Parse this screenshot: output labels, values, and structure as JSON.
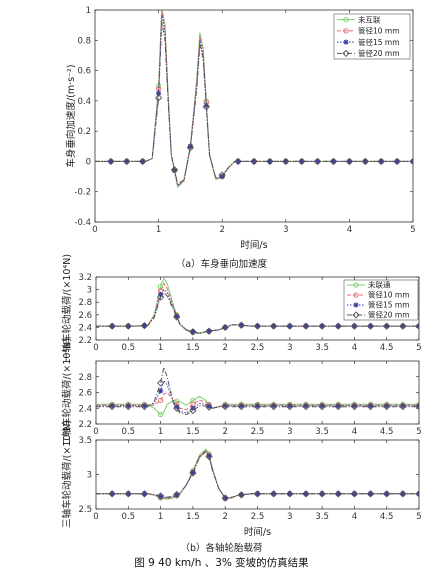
{
  "chart_data": [
    {
      "type": "line",
      "title": "",
      "xlabel": "时间/s",
      "ylabel": "车身垂向加速度/(m·s⁻²)",
      "xlim": [
        0,
        5
      ],
      "ylim": [
        -0.4,
        1.0
      ],
      "xticks": [
        0,
        1,
        2,
        3,
        4,
        5
      ],
      "yticks": [
        -0.4,
        -0.2,
        0,
        0.2,
        0.4,
        0.6,
        0.8,
        1
      ],
      "legend_position": "top-right",
      "x": [
        0,
        0.2,
        0.4,
        0.6,
        0.8,
        0.9,
        1.0,
        1.05,
        1.1,
        1.15,
        1.2,
        1.3,
        1.4,
        1.5,
        1.6,
        1.65,
        1.7,
        1.75,
        1.8,
        1.9,
        2.0,
        2.1,
        2.2,
        2.4,
        2.6,
        2.8,
        3.0,
        3.5,
        4.0,
        4.5,
        5.0
      ],
      "series": [
        {
          "name": "未互联",
          "color": "#7fcf6f",
          "marker": "circle",
          "values": [
            0,
            0,
            0,
            0,
            0,
            0.02,
            0.5,
            1.02,
            0.9,
            0.45,
            0.05,
            -0.17,
            -0.13,
            0.1,
            0.55,
            0.85,
            0.75,
            0.4,
            0.05,
            -0.12,
            -0.1,
            -0.04,
            0,
            0,
            0,
            0,
            0,
            0,
            0,
            0,
            0
          ]
        },
        {
          "name": "管径10 mm",
          "color": "#e56a6a",
          "marker": "circle",
          "values": [
            0,
            0,
            0,
            0,
            0,
            0.02,
            0.48,
            1.0,
            0.88,
            0.44,
            0.05,
            -0.16,
            -0.13,
            0.1,
            0.53,
            0.83,
            0.73,
            0.39,
            0.05,
            -0.12,
            -0.1,
            -0.04,
            0,
            0,
            0,
            0,
            0,
            0,
            0,
            0,
            0
          ]
        },
        {
          "name": "管径15 mm",
          "color": "#3a3aa8",
          "marker": "star",
          "values": [
            0,
            0,
            0,
            0,
            0,
            0.02,
            0.45,
            0.97,
            0.85,
            0.42,
            0.04,
            -0.16,
            -0.12,
            0.1,
            0.5,
            0.8,
            0.7,
            0.37,
            0.04,
            -0.11,
            -0.1,
            -0.04,
            0,
            0,
            0,
            0,
            0,
            0,
            0,
            0,
            0
          ]
        },
        {
          "name": "管径20 mm",
          "color": "#555555",
          "marker": "diamond",
          "values": [
            0,
            0,
            0,
            0,
            0,
            0.02,
            0.42,
            0.92,
            0.8,
            0.4,
            0.04,
            -0.15,
            -0.12,
            0.09,
            0.48,
            0.77,
            0.68,
            0.36,
            0.04,
            -0.11,
            -0.09,
            -0.04,
            0,
            0,
            0,
            0,
            0,
            0,
            0,
            0,
            0
          ]
        }
      ]
    },
    {
      "type": "line",
      "title": "",
      "xlabel": "",
      "ylabel": "一轴车轮动载荷/(×10⁴N)",
      "xlim": [
        0,
        5
      ],
      "ylim": [
        2.2,
        3.2
      ],
      "xticks": [
        0,
        0.5,
        1,
        1.5,
        2,
        2.5,
        3,
        3.5,
        4,
        4.5,
        5
      ],
      "yticks": [
        2.2,
        2.4,
        2.6,
        2.8,
        3.0,
        3.2
      ],
      "legend_position": "top-right",
      "x": [
        0,
        0.2,
        0.4,
        0.6,
        0.8,
        0.9,
        1.0,
        1.05,
        1.1,
        1.2,
        1.3,
        1.4,
        1.5,
        1.6,
        1.7,
        1.8,
        1.9,
        2.0,
        2.1,
        2.2,
        2.4,
        2.6,
        2.8,
        3.0,
        3.5,
        4.0,
        4.5,
        5.0
      ],
      "series": [
        {
          "name": "未联通",
          "color": "#7fcf6f",
          "marker": "circle",
          "values": [
            2.42,
            2.42,
            2.42,
            2.42,
            2.43,
            2.6,
            3.05,
            3.18,
            3.1,
            2.75,
            2.45,
            2.35,
            2.32,
            2.3,
            2.33,
            2.35,
            2.36,
            2.4,
            2.44,
            2.44,
            2.42,
            2.42,
            2.42,
            2.42,
            2.42,
            2.42,
            2.42,
            2.42
          ]
        },
        {
          "name": "管径10 mm",
          "color": "#e56a6a",
          "marker": "circle",
          "values": [
            2.42,
            2.42,
            2.42,
            2.42,
            2.43,
            2.58,
            2.98,
            3.1,
            3.02,
            2.72,
            2.45,
            2.36,
            2.33,
            2.31,
            2.33,
            2.35,
            2.36,
            2.4,
            2.44,
            2.44,
            2.42,
            2.42,
            2.42,
            2.42,
            2.42,
            2.42,
            2.42,
            2.42
          ]
        },
        {
          "name": "管径15 mm",
          "color": "#3a3aa8",
          "marker": "star",
          "values": [
            2.42,
            2.42,
            2.42,
            2.42,
            2.43,
            2.56,
            2.92,
            3.0,
            2.95,
            2.7,
            2.45,
            2.36,
            2.33,
            2.31,
            2.33,
            2.35,
            2.36,
            2.4,
            2.44,
            2.44,
            2.42,
            2.42,
            2.42,
            2.42,
            2.42,
            2.42,
            2.42,
            2.42
          ]
        },
        {
          "name": "管径20 mm",
          "color": "#555555",
          "marker": "diamond",
          "values": [
            2.42,
            2.42,
            2.42,
            2.42,
            2.43,
            2.55,
            2.88,
            2.95,
            2.9,
            2.68,
            2.45,
            2.36,
            2.33,
            2.31,
            2.33,
            2.35,
            2.36,
            2.4,
            2.44,
            2.44,
            2.42,
            2.42,
            2.42,
            2.42,
            2.42,
            2.42,
            2.42,
            2.42
          ]
        }
      ]
    },
    {
      "type": "line",
      "title": "",
      "xlabel": "",
      "ylabel": "二轴车轮动载荷/(×10⁴N)",
      "xlim": [
        0,
        5
      ],
      "ylim": [
        2.2,
        3.0
      ],
      "xticks": [
        0,
        0.5,
        1,
        1.5,
        2,
        2.5,
        3,
        3.5,
        4,
        4.5,
        5
      ],
      "yticks": [
        2.2,
        2.4,
        2.6,
        2.8
      ],
      "x": [
        0,
        0.2,
        0.4,
        0.6,
        0.8,
        0.9,
        1.0,
        1.05,
        1.1,
        1.2,
        1.3,
        1.4,
        1.5,
        1.6,
        1.7,
        1.8,
        1.9,
        2.0,
        2.1,
        2.2,
        2.4,
        2.6,
        2.8,
        3.0,
        3.5,
        4.0,
        4.5,
        5.0
      ],
      "series": [
        {
          "name": "未联通",
          "color": "#7fcf6f",
          "marker": "circle",
          "values": [
            2.45,
            2.45,
            2.45,
            2.45,
            2.45,
            2.4,
            2.32,
            2.35,
            2.45,
            2.5,
            2.48,
            2.44,
            2.5,
            2.55,
            2.5,
            2.4,
            2.42,
            2.45,
            2.45,
            2.45,
            2.45,
            2.45,
            2.45,
            2.45,
            2.45,
            2.45,
            2.45,
            2.45
          ]
        },
        {
          "name": "管径10 mm",
          "color": "#e56a6a",
          "marker": "circle",
          "values": [
            2.44,
            2.44,
            2.44,
            2.44,
            2.44,
            2.44,
            2.5,
            2.58,
            2.6,
            2.5,
            2.4,
            2.38,
            2.45,
            2.5,
            2.48,
            2.4,
            2.42,
            2.44,
            2.44,
            2.44,
            2.44,
            2.44,
            2.44,
            2.44,
            2.44,
            2.44,
            2.44,
            2.44
          ]
        },
        {
          "name": "管径15 mm",
          "color": "#3a3aa8",
          "marker": "star",
          "values": [
            2.43,
            2.43,
            2.43,
            2.43,
            2.43,
            2.46,
            2.62,
            2.75,
            2.7,
            2.48,
            2.36,
            2.34,
            2.4,
            2.46,
            2.45,
            2.4,
            2.42,
            2.43,
            2.43,
            2.43,
            2.43,
            2.43,
            2.43,
            2.43,
            2.43,
            2.43,
            2.43,
            2.43
          ]
        },
        {
          "name": "管径20 mm",
          "color": "#555555",
          "marker": "diamond",
          "values": [
            2.42,
            2.42,
            2.42,
            2.42,
            2.42,
            2.48,
            2.72,
            2.92,
            2.8,
            2.46,
            2.34,
            2.32,
            2.37,
            2.43,
            2.43,
            2.4,
            2.42,
            2.42,
            2.42,
            2.42,
            2.42,
            2.42,
            2.42,
            2.42,
            2.42,
            2.42,
            2.42,
            2.42
          ]
        }
      ]
    },
    {
      "type": "line",
      "title": "",
      "xlabel": "时间/s",
      "ylabel": "三轴车轮动载荷/(×10⁴N)",
      "xlim": [
        0,
        5
      ],
      "ylim": [
        2.5,
        3.5
      ],
      "xticks": [
        0,
        0.5,
        1,
        1.5,
        2,
        2.5,
        3,
        3.5,
        4,
        4.5,
        5
      ],
      "yticks": [
        2.5,
        3.0,
        3.5
      ],
      "x": [
        0,
        0.2,
        0.4,
        0.6,
        0.8,
        0.9,
        1.0,
        1.1,
        1.2,
        1.3,
        1.4,
        1.5,
        1.6,
        1.7,
        1.75,
        1.8,
        1.9,
        2.0,
        2.1,
        2.2,
        2.4,
        2.6,
        2.8,
        3.0,
        3.5,
        4.0,
        4.5,
        5.0
      ],
      "series": [
        {
          "name": "未联通",
          "color": "#7fcf6f",
          "marker": "circle",
          "values": [
            2.72,
            2.72,
            2.72,
            2.72,
            2.72,
            2.7,
            2.66,
            2.64,
            2.66,
            2.72,
            2.85,
            3.05,
            3.28,
            3.37,
            3.3,
            3.1,
            2.8,
            2.65,
            2.66,
            2.7,
            2.72,
            2.72,
            2.72,
            2.72,
            2.72,
            2.72,
            2.72,
            2.72
          ]
        },
        {
          "name": "管径10 mm",
          "color": "#e56a6a",
          "marker": "circle",
          "values": [
            2.72,
            2.72,
            2.72,
            2.72,
            2.72,
            2.7,
            2.67,
            2.65,
            2.67,
            2.72,
            2.85,
            3.04,
            3.26,
            3.35,
            3.28,
            3.08,
            2.8,
            2.65,
            2.66,
            2.7,
            2.72,
            2.72,
            2.72,
            2.72,
            2.72,
            2.72,
            2.72,
            2.72
          ]
        },
        {
          "name": "管径15 mm",
          "color": "#3a3aa8",
          "marker": "star",
          "values": [
            2.72,
            2.72,
            2.72,
            2.72,
            2.72,
            2.71,
            2.68,
            2.66,
            2.68,
            2.73,
            2.85,
            3.03,
            3.25,
            3.34,
            3.27,
            3.07,
            2.8,
            2.66,
            2.67,
            2.7,
            2.72,
            2.72,
            2.72,
            2.72,
            2.72,
            2.72,
            2.72,
            2.72
          ]
        },
        {
          "name": "管径20 mm",
          "color": "#555555",
          "marker": "diamond",
          "values": [
            2.72,
            2.72,
            2.72,
            2.72,
            2.72,
            2.71,
            2.69,
            2.67,
            2.69,
            2.73,
            2.85,
            3.02,
            3.24,
            3.33,
            3.26,
            3.06,
            2.8,
            2.66,
            2.67,
            2.7,
            2.72,
            2.72,
            2.72,
            2.72,
            2.72,
            2.72,
            2.72,
            2.72
          ]
        }
      ]
    }
  ],
  "captions": {
    "a": "（a）车身垂向加速度",
    "b": "（b）各轴轮胎载荷",
    "figure": "图 9    40 km/h 、3% 变坡的仿真结果"
  }
}
